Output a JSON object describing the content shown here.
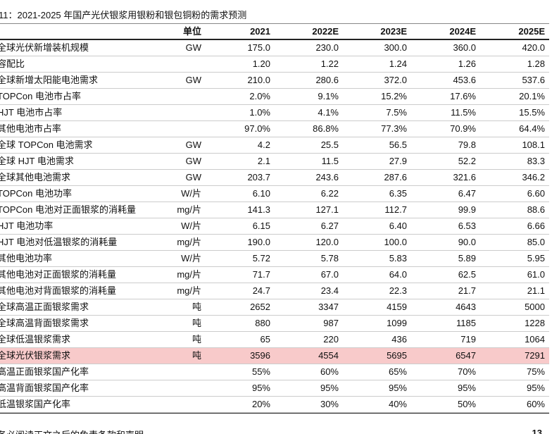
{
  "header": {
    "title": "11：2021-2025 年国产光伏银浆用银粉和银包铜粉的需求预测"
  },
  "table": {
    "columns": [
      "单位",
      "2021",
      "2022E",
      "2023E",
      "2024E",
      "2025E"
    ],
    "rows": [
      [
        "全球光伏新增装机规模",
        "GW",
        "175.0",
        "230.0",
        "300.0",
        "360.0",
        "420.0"
      ],
      [
        "容配比",
        null,
        "1.20",
        "1.22",
        "1.24",
        "1.26",
        "1.28"
      ],
      [
        "全球新增太阳能电池需求",
        "GW",
        "210.0",
        "280.6",
        "372.0",
        "453.6",
        "537.6"
      ],
      [
        "TOPCon 电池市占率",
        null,
        "2.0%",
        "9.1%",
        "15.2%",
        "17.6%",
        "20.1%"
      ],
      [
        "HJT 电池市占率",
        null,
        "1.0%",
        "4.1%",
        "7.5%",
        "11.5%",
        "15.5%"
      ],
      [
        "其他电池市占率",
        null,
        "97.0%",
        "86.8%",
        "77.3%",
        "70.9%",
        "64.4%"
      ],
      [
        "全球 TOPCon 电池需求",
        "GW",
        "4.2",
        "25.5",
        "56.5",
        "79.8",
        "108.1"
      ],
      [
        "全球 HJT 电池需求",
        "GW",
        "2.1",
        "11.5",
        "27.9",
        "52.2",
        "83.3"
      ],
      [
        "全球其他电池需求",
        "GW",
        "203.7",
        "243.6",
        "287.6",
        "321.6",
        "346.2"
      ],
      [
        "TOPCon 电池功率",
        "W/片",
        "6.10",
        "6.22",
        "6.35",
        "6.47",
        "6.60"
      ],
      [
        "TOPCon 电池对正面银浆的消耗量",
        "mg/片",
        "141.3",
        "127.1",
        "112.7",
        "99.9",
        "88.6"
      ],
      [
        "HJT 电池功率",
        "W/片",
        "6.15",
        "6.27",
        "6.40",
        "6.53",
        "6.66"
      ],
      [
        "HJT 电池对低温银浆的消耗量",
        "mg/片",
        "190.0",
        "120.0",
        "100.0",
        "90.0",
        "85.0"
      ],
      [
        "其他电池功率",
        "W/片",
        "5.72",
        "5.78",
        "5.83",
        "5.89",
        "5.95"
      ],
      [
        "其他电池对正面银浆的消耗量",
        "mg/片",
        "71.7",
        "67.0",
        "64.0",
        "62.5",
        "61.0"
      ],
      [
        "其他电池对背面银浆的消耗量",
        "mg/片",
        "24.7",
        "23.4",
        "22.3",
        "21.7",
        "21.1"
      ],
      [
        "全球高温正面银浆需求",
        "吨",
        "2652",
        "3347",
        "4159",
        "4643",
        "5000"
      ],
      [
        "全球高温背面银浆需求",
        "吨",
        "880",
        "987",
        "1099",
        "1185",
        "1228"
      ],
      [
        "全球低温银浆需求",
        "吨",
        "65",
        "220",
        "436",
        "719",
        "1064"
      ],
      [
        "全球光伏银浆需求",
        "吨",
        "3596",
        "4554",
        "5695",
        "6547",
        "7291"
      ],
      [
        "高温正面银浆国产化率",
        null,
        "55%",
        "60%",
        "65%",
        "70%",
        "75%"
      ],
      [
        "高温背面银浆国产化率",
        null,
        "95%",
        "95%",
        "95%",
        "95%",
        "95%"
      ],
      [
        "低温银浆国产化率",
        null,
        "20%",
        "30%",
        "40%",
        "50%",
        "60%"
      ]
    ]
  },
  "footer": {
    "text": "务必阅读正文之后的免责条款和声明",
    "page": "13"
  }
}
